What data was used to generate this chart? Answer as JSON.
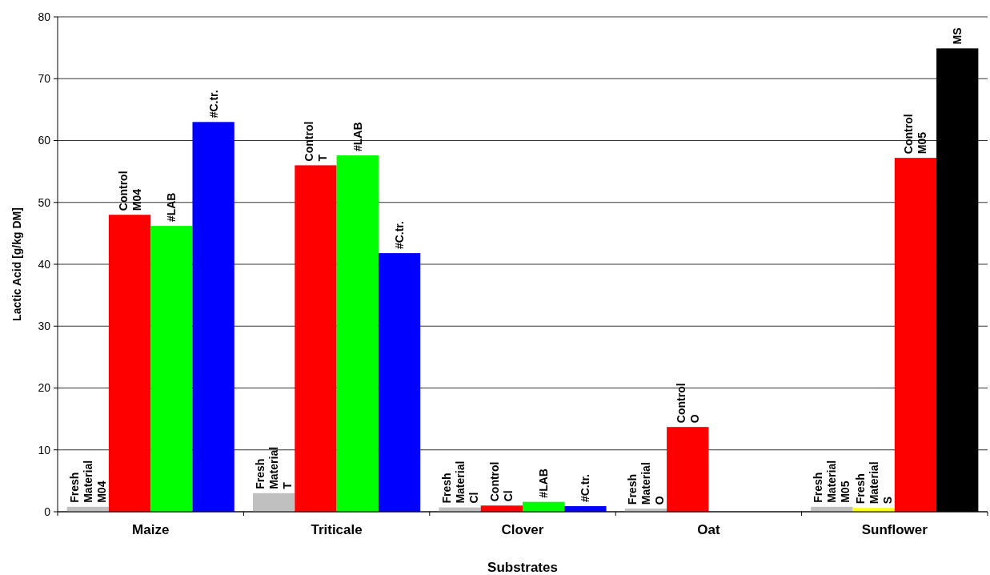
{
  "chart_data": {
    "type": "bar",
    "categories": [
      "Maize",
      "Triticale",
      "Clover",
      "Oat",
      "Sunflower"
    ],
    "series": [
      {
        "colors": [
          "#c0c0c0",
          "#c0c0c0",
          "#c0c0c0",
          "#c0c0c0",
          "#c0c0c0"
        ],
        "values": [
          0.8,
          3,
          0.7,
          0.5,
          0.8
        ]
      },
      {
        "colors": [
          "#ff0000",
          "#ff0000",
          "#ff0000",
          "#ff0000",
          "#ffff00"
        ],
        "values": [
          48,
          56,
          1.0,
          13.7,
          0.6
        ]
      },
      {
        "colors": [
          "#00ff00",
          "#00ff00",
          "#00ff00",
          null,
          "#ff0000"
        ],
        "values": [
          46.2,
          57.6,
          1.6,
          null,
          57.2
        ]
      },
      {
        "colors": [
          "#0000ff",
          "#0000ff",
          "#0000ff",
          null,
          "#000000"
        ],
        "values": [
          63,
          41.8,
          0.9,
          null,
          74.9
        ]
      }
    ],
    "xlabel": "Substrates",
    "ylabel": "Lactic Acid [g/kg DM]",
    "ylim": [
      0,
      80
    ],
    "yticks": [
      0,
      10,
      20,
      30,
      40,
      50,
      60,
      70,
      80
    ],
    "grid": "y",
    "annotations": [
      "Fresh\nMaterial\nM04",
      "Control\nM04",
      "#LAB",
      "#C.tr.",
      "Fresh\nMaterial\nT",
      "Control\nT",
      "#LAB",
      "#C.tr.",
      "Fresh\nMaterial\nCl",
      "Control\nCl",
      "#LAB",
      "#C.tr.",
      "Fresh\nMaterial\nO",
      "Control\nO",
      "Fresh\nMaterial\nM05",
      "Fresh\nMaterial\nS",
      "Control\nM05",
      "MS"
    ]
  }
}
